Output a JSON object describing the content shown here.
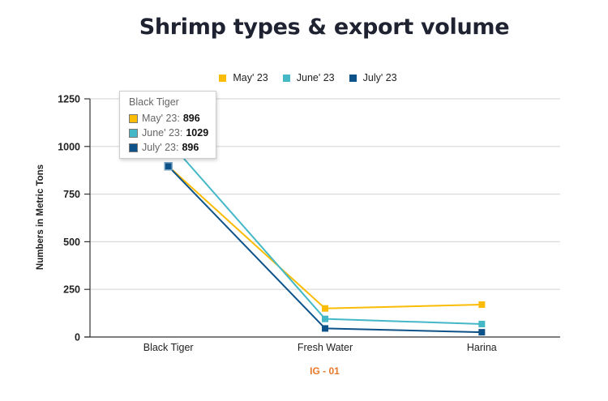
{
  "chart_data": {
    "type": "line",
    "title": "Shrimp types & export volume",
    "xlabel": "",
    "ylabel": "Numbers in Metric Tons",
    "categories": [
      "Black Tiger",
      "Fresh Water",
      "Harina"
    ],
    "series": [
      {
        "name": "May' 23",
        "color": "#FBBC05",
        "values": [
          896,
          150,
          170
        ]
      },
      {
        "name": "June' 23",
        "color": "#45B8C8",
        "values": [
          1029,
          95,
          68
        ]
      },
      {
        "name": "July' 23",
        "color": "#0D5289",
        "values": [
          896,
          45,
          25
        ]
      }
    ],
    "ylim": [
      0,
      1250
    ],
    "yticks": [
      0,
      250,
      500,
      750,
      1000,
      1250
    ],
    "grid": true,
    "legend_position": "top",
    "caption": "IG - 01"
  },
  "tooltip": {
    "title": "Black Tiger",
    "rows": [
      {
        "label": "May' 23:",
        "value": "896",
        "color": "#FBBC05"
      },
      {
        "label": "June' 23:",
        "value": "1029",
        "color": "#45B8C8"
      },
      {
        "label": "July' 23:",
        "value": "896",
        "color": "#0D5289"
      }
    ]
  }
}
